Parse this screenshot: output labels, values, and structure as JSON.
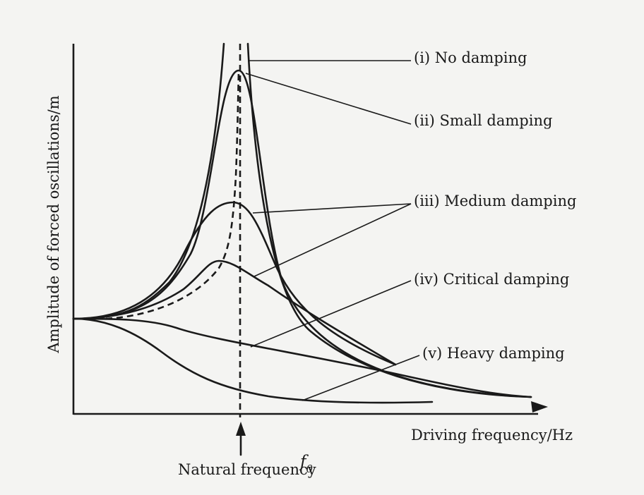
{
  "diagram": {
    "y_axis_label": "Amplitude of forced oscillations/m",
    "x_axis_label": "Driving frequency/Hz",
    "natural_frequency_label": "Natural frequency",
    "natural_frequency_symbol": "f",
    "natural_frequency_subscript": "0",
    "curves": [
      {
        "id": "no-damping",
        "label": "(i) No damping"
      },
      {
        "id": "small-damping",
        "label": "(ii) Small damping"
      },
      {
        "id": "medium-damping",
        "label": "(iii) Medium damping"
      },
      {
        "id": "critical-damping",
        "label": "(iv) Critical damping"
      },
      {
        "id": "heavy-damping",
        "label": "(v) Heavy damping"
      }
    ],
    "line_color": "#1a1a1a",
    "background_color": "#f4f4f2"
  }
}
